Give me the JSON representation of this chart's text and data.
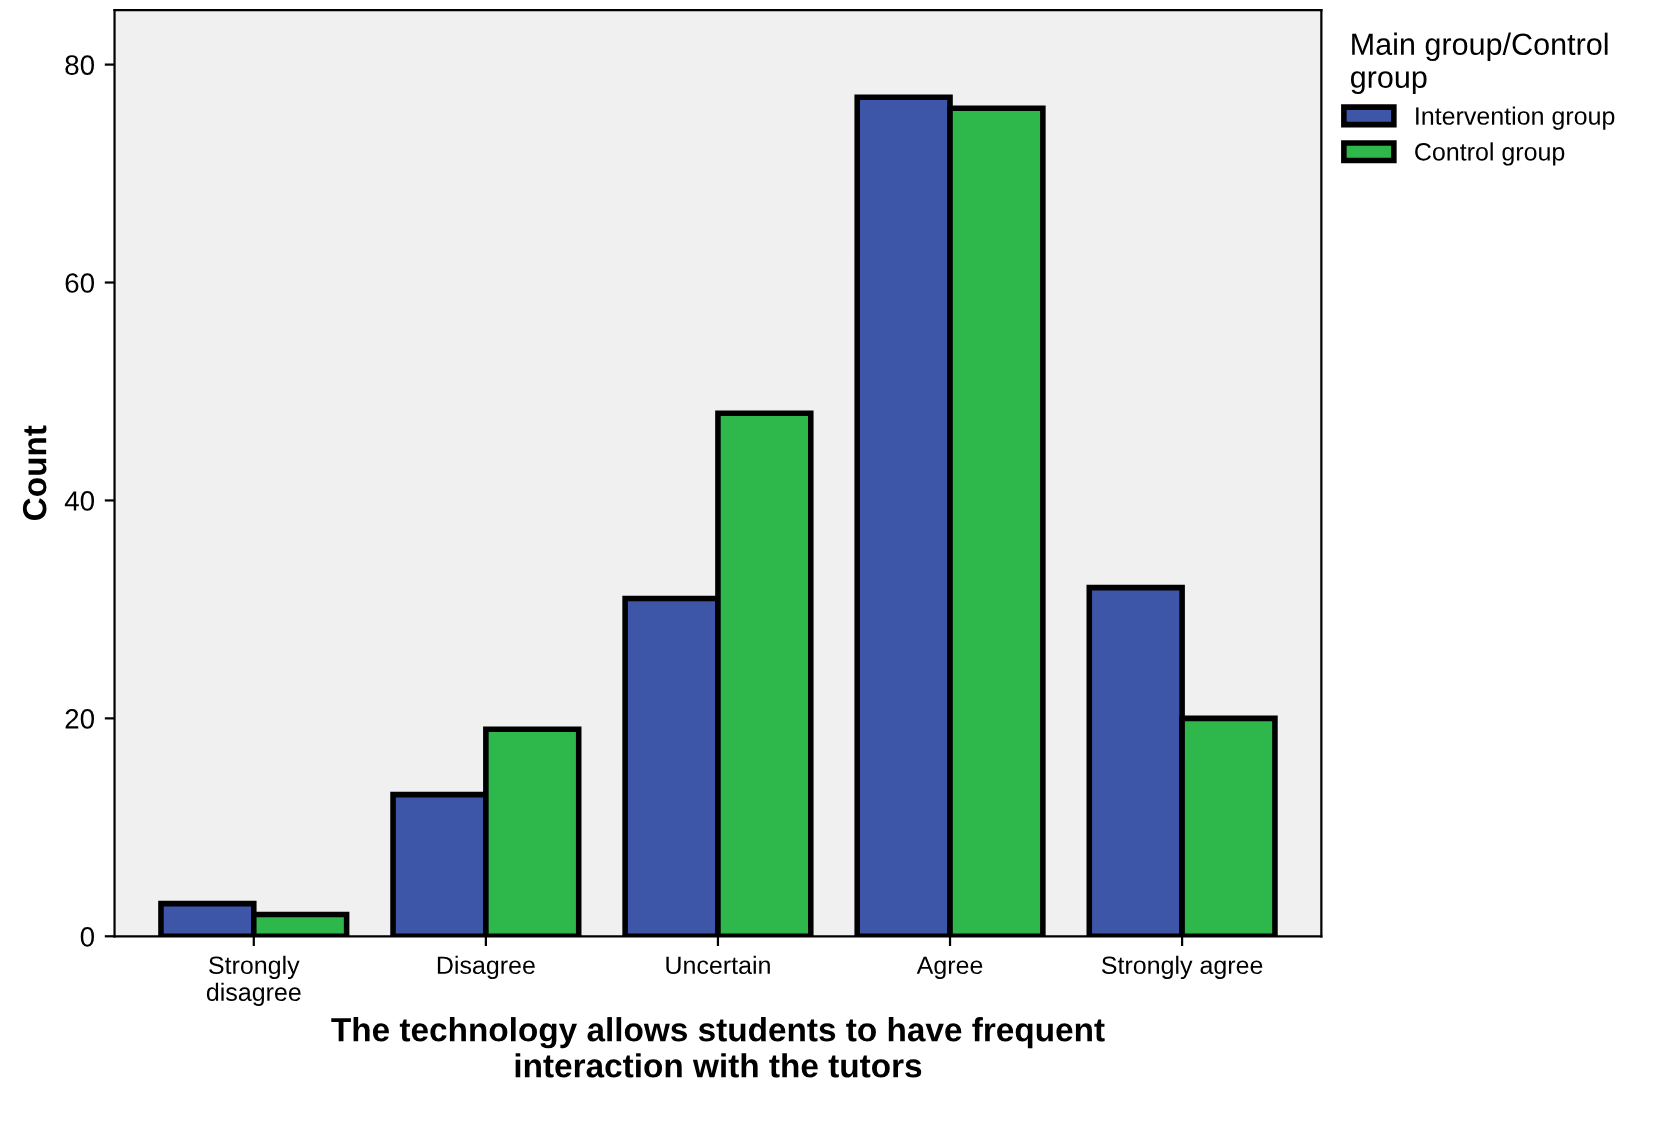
{
  "chart_data": {
    "type": "bar",
    "xlabel": "The technology allows students to have frequent\ninteraction with the tutors",
    "ylabel": "Count",
    "legend_title": "Main group/Control\ngroup",
    "categories": [
      "Strongly\ndisagree",
      "Disagree",
      "Uncertain",
      "Agree",
      "Strongly agree"
    ],
    "series": [
      {
        "name": "Intervention group",
        "color": "#3d56a8",
        "values": [
          3,
          13,
          31,
          77,
          32
        ]
      },
      {
        "name": "Control group",
        "color": "#2eb84b",
        "values": [
          2,
          19,
          48,
          76,
          20
        ]
      }
    ],
    "ylim": [
      0,
      85
    ],
    "yticks": [
      0,
      20,
      40,
      60,
      80
    ],
    "grid": false,
    "legend": "top right"
  }
}
